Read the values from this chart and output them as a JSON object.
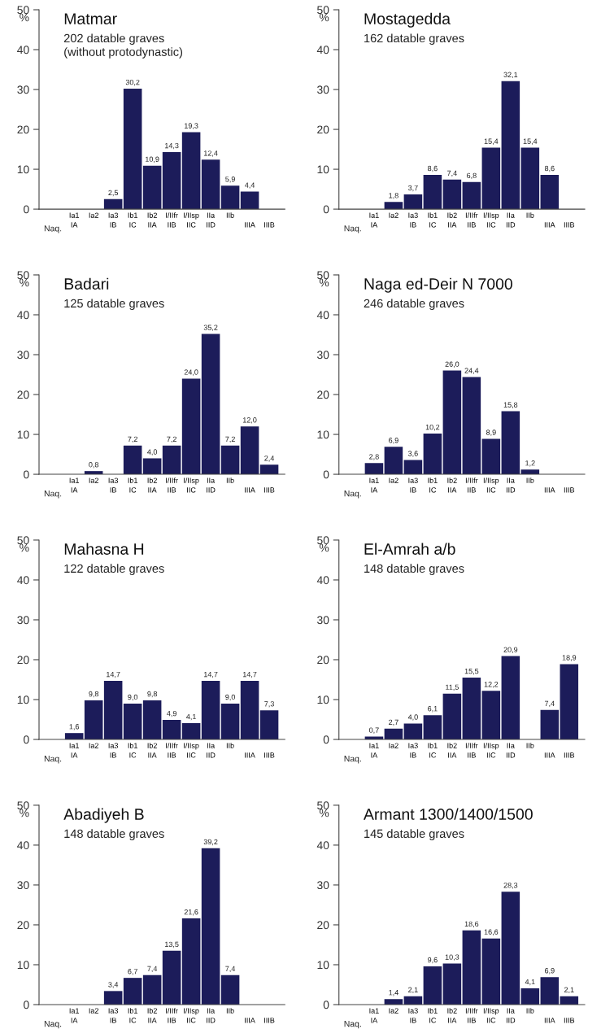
{
  "chart_data": [
    {
      "type": "bar",
      "title": "Matmar",
      "subtitle": "202 datable graves\n(without protodynastic)",
      "ylabel": "%",
      "annotations": [
        "Naq."
      ],
      "categories": [
        "Ia1\nIA",
        "Ia2\n",
        "Ia3\nIB",
        "Ib1\nIC",
        "Ib2\nIIA",
        "I/IIfr\nIIB",
        "I/IIsp\nIIC",
        "IIa\nIID",
        "IIb\n",
        "\nIIIA",
        "\nIIIB"
      ],
      "values": [
        null,
        null,
        2.5,
        30.2,
        10.9,
        14.3,
        19.3,
        12.4,
        5.9,
        4.4,
        null
      ],
      "value_labels": [
        null,
        null,
        "2,5",
        "30,2",
        "10,9",
        "14,3",
        "19,3",
        "12,4",
        "5,9",
        "4,4",
        null
      ],
      "color": "#1c1c5a",
      "ylim": [
        0,
        50
      ],
      "yticks": [
        0,
        10,
        20,
        30,
        40,
        50
      ],
      "grid": false,
      "legend": false
    },
    {
      "type": "bar",
      "title": "Mostagedda",
      "subtitle": "162 datable graves",
      "ylabel": "%",
      "annotations": [
        "Naq."
      ],
      "categories": [
        "Ia1\nIA",
        "Ia2\n",
        "Ia3\nIB",
        "Ib1\nIC",
        "Ib2\nIIA",
        "I/IIfr\nIIB",
        "I/IIsp\nIIC",
        "IIa\nIID",
        "IIb\n",
        "\nIIIA",
        "\nIIIB"
      ],
      "values": [
        null,
        1.8,
        3.7,
        8.6,
        7.4,
        6.8,
        15.4,
        32.1,
        15.4,
        8.6,
        null
      ],
      "value_labels": [
        null,
        "1,8",
        "3,7",
        "8,6",
        "7,4",
        "6,8",
        "15,4",
        "32,1",
        "15,4",
        "8,6",
        null
      ],
      "color": "#1c1c5a",
      "ylim": [
        0,
        50
      ],
      "yticks": [
        0,
        10,
        20,
        30,
        40,
        50
      ],
      "grid": false,
      "legend": false
    },
    {
      "type": "bar",
      "title": "Badari",
      "subtitle": "125 datable graves",
      "ylabel": "%",
      "annotations": [
        "Naq."
      ],
      "categories": [
        "Ia1\nIA",
        "Ia2\n",
        "Ia3\nIB",
        "Ib1\nIC",
        "Ib2\nIIA",
        "I/IIfr\nIIB",
        "I/IIsp\nIIC",
        "IIa\nIID",
        "IIb\n",
        "\nIIIA",
        "\nIIIB"
      ],
      "values": [
        null,
        0.8,
        null,
        7.2,
        4.0,
        7.2,
        24.0,
        35.2,
        7.2,
        12.0,
        2.4
      ],
      "value_labels": [
        null,
        "0,8",
        null,
        "7,2",
        "4,0",
        "7,2",
        "24,0",
        "35,2",
        "7,2",
        "12,0",
        "2,4"
      ],
      "color": "#1c1c5a",
      "ylim": [
        0,
        50
      ],
      "yticks": [
        0,
        10,
        20,
        30,
        40,
        50
      ],
      "grid": false,
      "legend": false
    },
    {
      "type": "bar",
      "title": "Naga ed-Deir N 7000",
      "subtitle": "246 datable graves",
      "ylabel": "%",
      "annotations": [
        "Naq."
      ],
      "categories": [
        "Ia1\nIA",
        "Ia2\n",
        "Ia3\nIB",
        "Ib1\nIC",
        "Ib2\nIIA",
        "I/IIfr\nIIB",
        "I/IIsp\nIIC",
        "IIa\nIID",
        "IIb\n",
        "\nIIIA",
        "\nIIIB"
      ],
      "values": [
        2.8,
        6.9,
        3.6,
        10.2,
        26.0,
        24.4,
        8.9,
        15.8,
        1.2,
        null,
        null
      ],
      "value_labels": [
        "2,8",
        "6,9",
        "3,6",
        "10,2",
        "26,0",
        "24,4",
        "8,9",
        "15,8",
        "1,2",
        null,
        null
      ],
      "color": "#1c1c5a",
      "ylim": [
        0,
        50
      ],
      "yticks": [
        0,
        10,
        20,
        30,
        40,
        50
      ],
      "grid": false,
      "legend": false
    },
    {
      "type": "bar",
      "title": "Mahasna H",
      "subtitle": "122 datable graves",
      "ylabel": "%",
      "annotations": [
        "Naq."
      ],
      "categories": [
        "Ia1\nIA",
        "Ia2\n",
        "Ia3\nIB",
        "Ib1\nIC",
        "Ib2\nIIA",
        "I/IIfr\nIIB",
        "I/IIsp\nIIC",
        "IIa\nIID",
        "IIb\n",
        "\nIIIA",
        "\nIIIB"
      ],
      "values": [
        1.6,
        9.8,
        14.7,
        9.0,
        9.8,
        4.9,
        4.1,
        14.7,
        9.0,
        14.7,
        7.3
      ],
      "value_labels": [
        "1,6",
        "9,8",
        "14,7",
        "9,0",
        "9,8",
        "4,9",
        "4,1",
        "14,7",
        "9,0",
        "14,7",
        "7,3"
      ],
      "color": "#1c1c5a",
      "ylim": [
        0,
        50
      ],
      "yticks": [
        0,
        10,
        20,
        30,
        40,
        50
      ],
      "grid": false,
      "legend": false
    },
    {
      "type": "bar",
      "title": "El-Amrah a/b",
      "subtitle": "148 datable graves",
      "ylabel": "%",
      "annotations": [
        "Naq."
      ],
      "categories": [
        "Ia1\nIA",
        "Ia2\n",
        "Ia3\nIB",
        "Ib1\nIC",
        "Ib2\nIIA",
        "I/IIfr\nIIB",
        "I/IIsp\nIIC",
        "IIa\nIID",
        "IIb\n",
        "\nIIIA",
        "\nIIIB"
      ],
      "values": [
        0.7,
        2.7,
        4.0,
        6.1,
        11.5,
        15.5,
        12.2,
        20.9,
        null,
        7.4,
        18.9
      ],
      "value_labels": [
        "0,7",
        "2,7",
        "4,0",
        "6,1",
        "11,5",
        "15,5",
        "12,2",
        "20,9",
        null,
        "7,4",
        "18,9"
      ],
      "color": "#1c1c5a",
      "ylim": [
        0,
        50
      ],
      "yticks": [
        0,
        10,
        20,
        30,
        40,
        50
      ],
      "grid": false,
      "legend": false
    },
    {
      "type": "bar",
      "title": "Abadiyeh B",
      "subtitle": "148 datable graves",
      "ylabel": "%",
      "annotations": [
        "Naq."
      ],
      "categories": [
        "Ia1\nIA",
        "Ia2\n",
        "Ia3\nIB",
        "Ib1\nIC",
        "Ib2\nIIA",
        "I/IIfr\nIIB",
        "I/IIsp\nIIC",
        "IIa\nIID",
        "IIb\n",
        "\nIIIA",
        "\nIIIB"
      ],
      "values": [
        null,
        null,
        3.4,
        6.7,
        7.4,
        13.5,
        21.6,
        39.2,
        7.4,
        null,
        null
      ],
      "value_labels": [
        null,
        null,
        "3,4",
        "6,7",
        "7,4",
        "13,5",
        "21,6",
        "39,2",
        "7,4",
        null,
        null
      ],
      "color": "#1c1c5a",
      "ylim": [
        0,
        50
      ],
      "yticks": [
        0,
        10,
        20,
        30,
        40,
        50
      ],
      "grid": false,
      "legend": false
    },
    {
      "type": "bar",
      "title": "Armant 1300/1400/1500",
      "subtitle": "145 datable graves",
      "ylabel": "%",
      "annotations": [
        "Naq."
      ],
      "categories": [
        "Ia1\nIA",
        "Ia2\n",
        "Ia3\nIB",
        "Ib1\nIC",
        "Ib2\nIIA",
        "I/IIfr\nIIB",
        "I/IIsp\nIIC",
        "IIa\nIID",
        "IIb\n",
        "\nIIIA",
        "\nIIIB"
      ],
      "values": [
        null,
        1.4,
        2.1,
        9.6,
        10.3,
        18.6,
        16.6,
        28.3,
        4.1,
        6.9,
        2.1
      ],
      "value_labels": [
        null,
        "1,4",
        "2,1",
        "9,6",
        "10,3",
        "18,6",
        "16,6",
        "28,3",
        "4,1",
        "6,9",
        "2,1"
      ],
      "color": "#1c1c5a",
      "ylim": [
        0,
        50
      ],
      "yticks": [
        0,
        10,
        20,
        30,
        40,
        50
      ],
      "grid": false,
      "legend": false
    }
  ]
}
